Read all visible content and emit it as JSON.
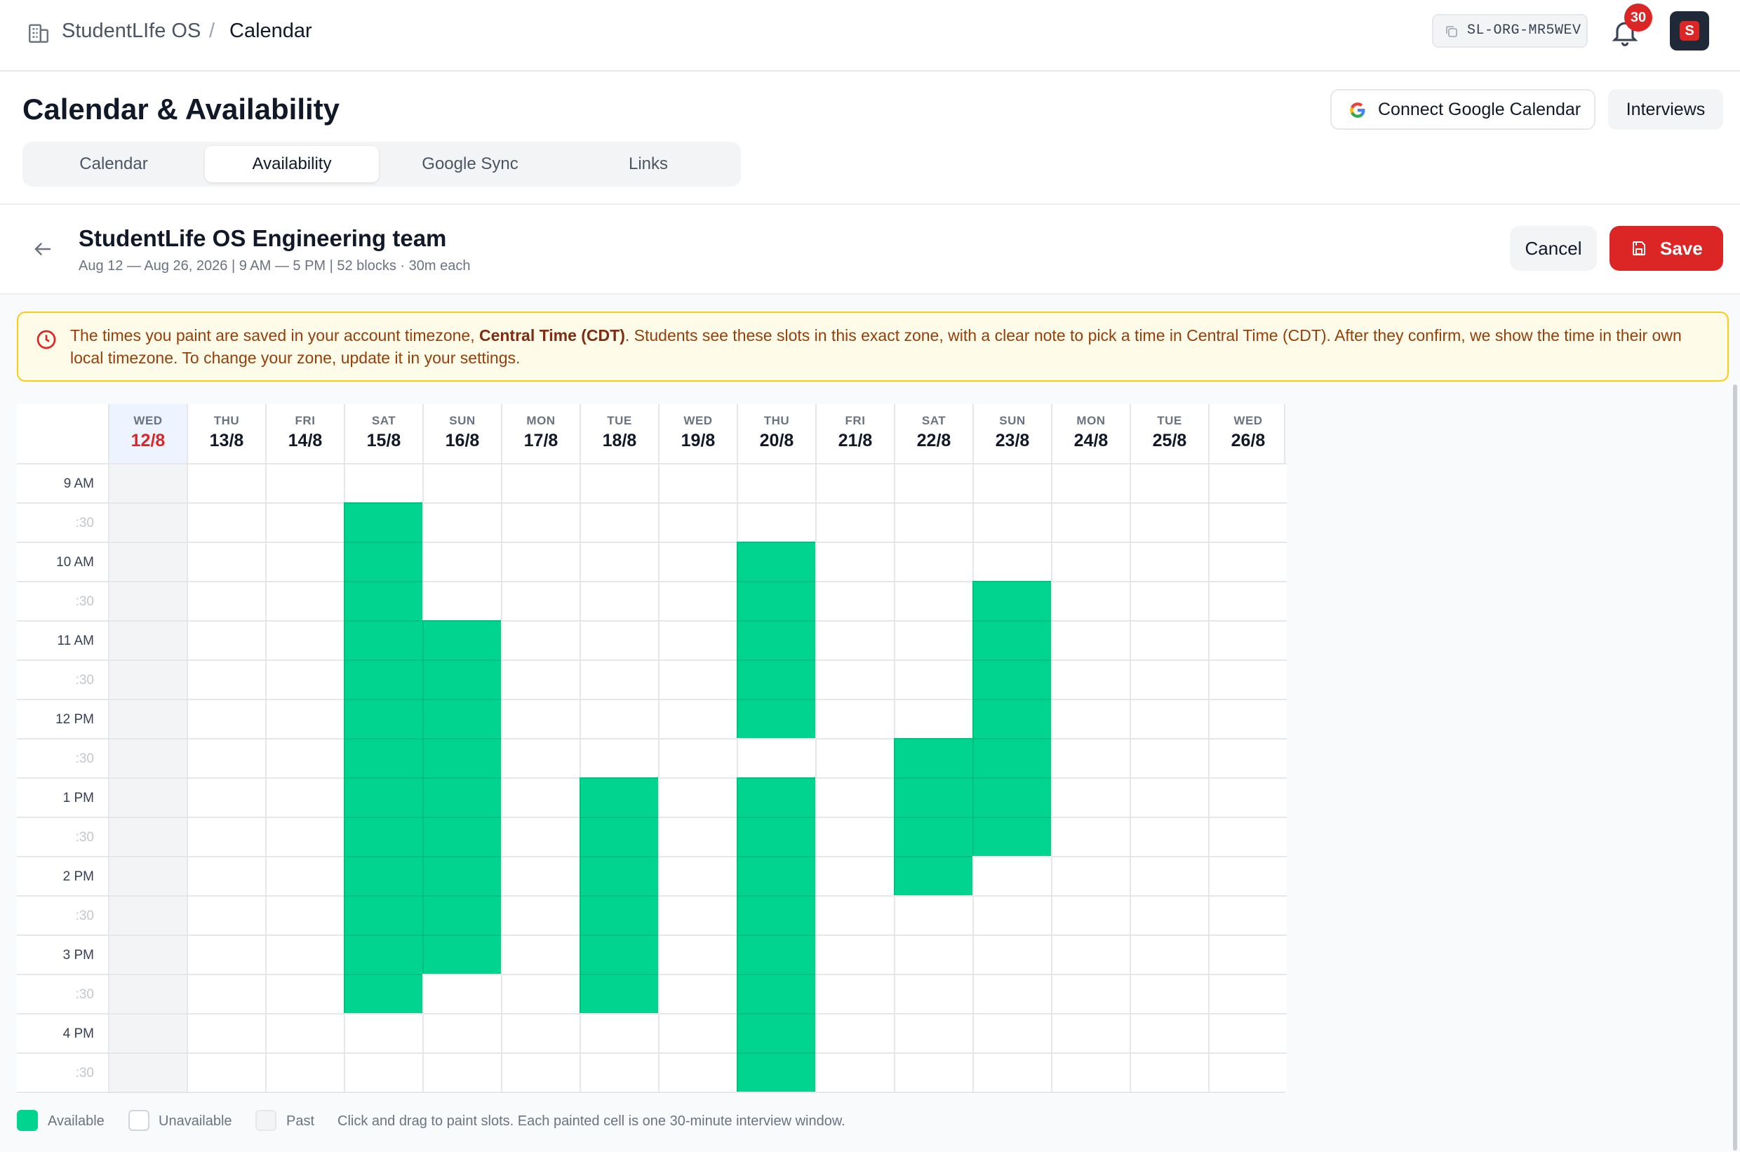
{
  "app": {
    "name": "StudentLIfe OS",
    "separator": "/",
    "page": "Calendar"
  },
  "org": {
    "code": "SL-ORG-MR5WEV"
  },
  "notifications": {
    "count": "30"
  },
  "avatar": {
    "initial": "S"
  },
  "header": {
    "title": "Calendar & Availability",
    "connect_label": "Connect Google Calendar",
    "interviews_label": "Interviews",
    "tabs": [
      "Calendar",
      "Availability",
      "Google Sync",
      "Links"
    ],
    "active_tab": "Availability"
  },
  "team": {
    "name": "StudentLife OS Engineering team",
    "meta": "Aug 12 — Aug 26, 2026 | 9 AM — 5 PM | 52 blocks · 30m each",
    "cancel_label": "Cancel",
    "save_label": "Save"
  },
  "notice": {
    "before": "The times you paint are saved in your account timezone, ",
    "zone": "Central Time (CDT)",
    "after": ". Students see these slots in this exact zone, with a clear note to pick a time in Central Time (CDT). After they confirm, we show the time in their own local timezone. To change your zone, update it in your settings."
  },
  "grid": {
    "days": [
      {
        "dow": "WED",
        "date": "12/8",
        "today": true
      },
      {
        "dow": "THU",
        "date": "13/8"
      },
      {
        "dow": "FRI",
        "date": "14/8"
      },
      {
        "dow": "SAT",
        "date": "15/8"
      },
      {
        "dow": "SUN",
        "date": "16/8"
      },
      {
        "dow": "MON",
        "date": "17/8"
      },
      {
        "dow": "TUE",
        "date": "18/8"
      },
      {
        "dow": "WED",
        "date": "19/8"
      },
      {
        "dow": "THU",
        "date": "20/8"
      },
      {
        "dow": "FRI",
        "date": "21/8"
      },
      {
        "dow": "SAT",
        "date": "22/8"
      },
      {
        "dow": "SUN",
        "date": "23/8"
      },
      {
        "dow": "MON",
        "date": "24/8"
      },
      {
        "dow": "TUE",
        "date": "25/8"
      },
      {
        "dow": "WED",
        "date": "26/8"
      }
    ],
    "times": [
      "9 AM",
      ":30",
      "10 AM",
      ":30",
      "11 AM",
      ":30",
      "12 PM",
      ":30",
      "1 PM",
      ":30",
      "2 PM",
      ":30",
      "3 PM",
      ":30",
      "4 PM",
      ":30"
    ],
    "past_day_index": 0,
    "available": {
      "3": [
        1,
        2,
        3,
        4,
        5,
        6,
        7,
        8,
        9,
        10,
        11,
        12,
        13
      ],
      "4": [
        4,
        5,
        6,
        7,
        8,
        9,
        10,
        11,
        12
      ],
      "6": [
        8,
        9,
        10,
        11,
        12,
        13
      ],
      "8": [
        2,
        3,
        4,
        5,
        6,
        8,
        9,
        10,
        11,
        12,
        13,
        14,
        15
      ],
      "10": [
        7,
        8,
        9,
        10
      ],
      "11": [
        3,
        4,
        5,
        6,
        7,
        8,
        9
      ]
    }
  },
  "legend": {
    "available": "Available",
    "unavailable": "Unavailable",
    "past": "Past",
    "hint": "Click and drag to paint slots. Each painted cell is one 30-minute interview window."
  }
}
